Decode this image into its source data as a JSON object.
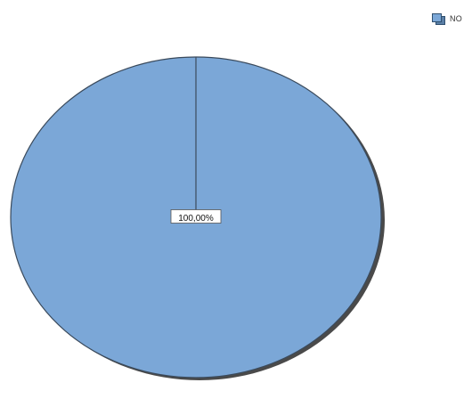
{
  "chart_data": {
    "type": "pie",
    "title": "",
    "slices": [
      {
        "label": "NO",
        "value": 100.0,
        "color": "#7ba7d7"
      }
    ],
    "data_labels": [
      "100,00%"
    ],
    "legend": {
      "position": "top-right",
      "entries": [
        "NO"
      ]
    }
  },
  "style": {
    "slice_fill": "#7ba7d7",
    "outline": "#3a4a5c",
    "shadow": "#4a4a4a"
  }
}
